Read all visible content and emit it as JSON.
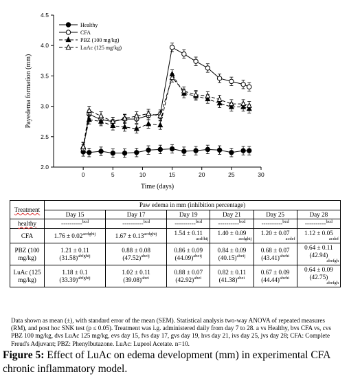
{
  "chart_data": {
    "type": "line",
    "xlabel": "Time (days)",
    "ylabel": "Payedema formation (mm)",
    "xlim": [
      -5,
      30
    ],
    "ylim": [
      2.0,
      4.5
    ],
    "xticks": [
      "0",
      "5",
      "10",
      "15",
      "20",
      "25",
      "30"
    ],
    "yticks": [
      "2.0",
      "2.5",
      "3.0",
      "3.5",
      "4.0",
      "4.5"
    ],
    "legend_position": "top-left",
    "series": [
      {
        "name": "Healthy",
        "marker": "filled-circle",
        "line": "solid",
        "x": [
          0,
          1,
          3,
          5,
          7,
          9,
          11,
          13,
          15,
          17,
          19,
          21,
          23,
          25,
          27,
          28
        ],
        "y": [
          2.25,
          2.24,
          2.26,
          2.23,
          2.23,
          2.24,
          2.28,
          2.29,
          2.3,
          2.26,
          2.27,
          2.29,
          2.28,
          2.24,
          2.27,
          2.27
        ]
      },
      {
        "name": "CFA",
        "marker": "open-circle",
        "line": "solid",
        "x": [
          0,
          1,
          3,
          5,
          7,
          9,
          11,
          13,
          15,
          17,
          19,
          21,
          23,
          25,
          27,
          28
        ],
        "y": [
          2.3,
          2.87,
          2.78,
          2.75,
          2.79,
          2.79,
          2.85,
          2.87,
          3.97,
          3.86,
          3.74,
          3.63,
          3.46,
          3.41,
          3.36,
          3.32
        ]
      },
      {
        "name": "PBZ (100 mg/kg)",
        "marker": "filled-triangle",
        "line": "dashed",
        "x": [
          0,
          1,
          3,
          5,
          7,
          9,
          11,
          13,
          15,
          17,
          19,
          21,
          23,
          25,
          27,
          28
        ],
        "y": [
          2.34,
          2.78,
          2.75,
          2.68,
          2.66,
          2.63,
          2.71,
          2.69,
          3.53,
          3.21,
          3.17,
          3.12,
          3.05,
          2.99,
          2.99,
          2.96
        ]
      },
      {
        "name": "LuAc (125 mg/kg)",
        "marker": "open-triangle",
        "line": "dashed",
        "x": [
          0,
          1,
          3,
          5,
          7,
          9,
          11,
          13,
          15,
          17,
          19,
          21,
          23,
          25,
          27,
          28
        ],
        "y": [
          2.33,
          2.93,
          2.84,
          2.75,
          2.8,
          2.84,
          2.88,
          2.84,
          3.47,
          3.25,
          3.19,
          3.17,
          3.11,
          3.04,
          3.04,
          3.01
        ]
      }
    ],
    "error_bar": 0.07
  },
  "table": {
    "col_treatment": "Treatment",
    "col_group": "Paw edema in mm (inhibition percentage)",
    "days": [
      "Day 15",
      "Day 17",
      "Day 19",
      "Day 21",
      "Day 25",
      "Day 28"
    ],
    "rows": [
      {
        "name": "healthy",
        "cells": [
          {
            "line1": "----------",
            "sup1": "bcd",
            "line2": ""
          },
          {
            "line1": "----------",
            "sup1": "bcd",
            "line2": ""
          },
          {
            "line1": "----------",
            "sup1": "bcd",
            "line2": ""
          },
          {
            "line1": "----------",
            "sup1": "bcd",
            "line2": ""
          },
          {
            "line1": "----------",
            "sup1": "bcd",
            "line2": ""
          },
          {
            "line1": "----------",
            "sup1": "bcd",
            "line2": ""
          }
        ]
      },
      {
        "name": "CFA",
        "cells": [
          {
            "line1": "1.76 ± 0.02",
            "sup1": "acdghij",
            "line2": ""
          },
          {
            "line1": "1.67 ± 0.13",
            "sup1": "acdghij",
            "line2": ""
          },
          {
            "line1": "1.54 ± 0.11",
            "sup1": "",
            "line2": "acdfhij"
          },
          {
            "line1": "1.40 ± 0.09",
            "sup1": "",
            "line2": "acdghij"
          },
          {
            "line1": "1.20 ± 0.07",
            "sup1": "",
            "line2": "acdef"
          },
          {
            "line1": "1.12 ± 0.05",
            "sup1": "",
            "line2": "acdef"
          }
        ]
      },
      {
        "name": "PBZ (100 mg/kg)",
        "cells": [
          {
            "line1": "1.21 ± 0.11",
            "sup1": "",
            "line2": "(31.58)",
            "sup2": "abfghij"
          },
          {
            "line1": "0.88 ± 0.08",
            "sup1": "",
            "line2": "(47.52)",
            "sup2": "abeij"
          },
          {
            "line1": "0.86 ± 0.09",
            "sup1": "",
            "line2": "(44.09)",
            "sup2": "abeij"
          },
          {
            "line1": "0.84 ± 0.09",
            "sup1": "",
            "line2": "(40.15)",
            "sup2": "abeij"
          },
          {
            "line1": "0.68 ± 0.07",
            "sup1": "",
            "line2": "(43.41)",
            "sup2": "abehi"
          },
          {
            "line1": "0.64 ± 0.11",
            "sup1": "",
            "line2": "(42.94)",
            "sup2": "",
            "line3": "abefgh"
          }
        ]
      },
      {
        "name": "LuAc (125 mg/kg)",
        "cells": [
          {
            "line1": "1.18 ± 0.1",
            "sup1": "",
            "line2": "(33.39)",
            "sup2": "abfghij"
          },
          {
            "line1": "1.02 ± 0.11",
            "sup1": "",
            "line2": "(39.08)",
            "sup2": "abei"
          },
          {
            "line1": "0.88 ± 0.07",
            "sup1": "",
            "line2": "(42.92)",
            "sup2": "abei"
          },
          {
            "line1": "0.82 ± 0.11",
            "sup1": "",
            "line2": "(41.38)",
            "sup2": "abei"
          },
          {
            "line1": "0.67 ± 0.09",
            "sup1": "",
            "line2": "(44.44)",
            "sup2": "abehi"
          },
          {
            "line1": "0.64 ± 0.09",
            "sup1": "",
            "line2": "(42.75)",
            "sup2": "",
            "line3": "abefgh"
          }
        ]
      }
    ]
  },
  "note": "Data shown as mean (±), with standard error of the mean (SEM). Statistical analysis two-way ANOVA of repeated measures (RM), and post hoc SNK test (p ≤ 0.05). Treatment was i.g. administered daily from day 7 to 28. a vs Healthy, bvs CFA vs, cvs PBZ 100 mg/kg, dvs LuAc 125 mg/kg, evs day 15, fvs day 17, gvs day 19, hvs day 21, ivs day 25, jvs day 28; CFA: Complete Freud's Adjuvant; PBZ: Phenylbutazone. LuAc: Lupeol Acetate. n=10.",
  "caption": {
    "label": "Figure 5:",
    "text": " Effect of LuAc on edema development (mm) in experimental CFA chronic inflammatory model."
  }
}
